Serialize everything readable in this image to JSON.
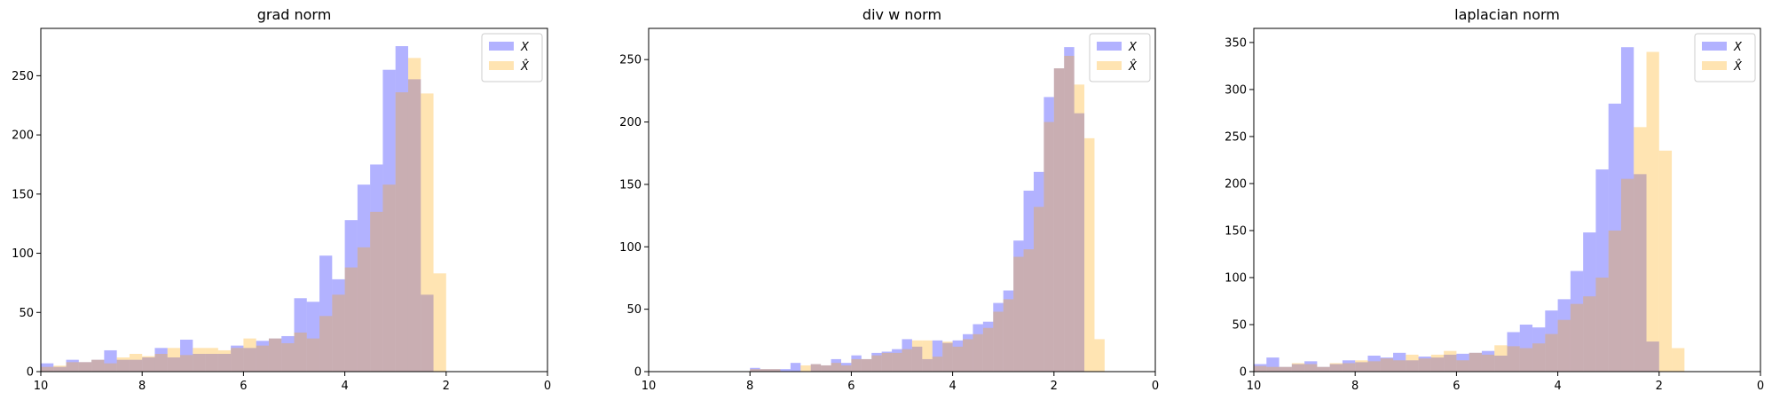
{
  "chart_data": [
    {
      "type": "histogram",
      "title": "grad norm",
      "xlim": [
        10,
        0
      ],
      "ylim": [
        0,
        290
      ],
      "xticks": [
        10,
        8,
        6,
        4,
        2,
        0
      ],
      "yticks": [
        0,
        50,
        100,
        150,
        200,
        250
      ],
      "legend_position": "top-right",
      "bin_width": 0.25,
      "series": [
        {
          "name": "X",
          "color": "#0000ff",
          "opacity": 0.3,
          "bin_start": 10.0,
          "values": [
            7,
            4,
            10,
            8,
            10,
            18,
            10,
            10,
            12,
            20,
            12,
            27,
            15,
            15,
            15,
            22,
            20,
            26,
            28,
            30,
            62,
            59,
            98,
            78,
            128,
            158,
            175,
            255,
            275,
            247,
            65
          ]
        },
        {
          "name": "X̂",
          "color": "#ffa500",
          "opacity": 0.3,
          "bin_start": 10.0,
          "values": [
            4,
            5,
            8,
            8,
            10,
            7,
            12,
            15,
            13,
            15,
            20,
            14,
            20,
            20,
            18,
            20,
            28,
            22,
            28,
            24,
            33,
            28,
            47,
            65,
            88,
            105,
            135,
            158,
            236,
            265,
            235,
            83
          ]
        }
      ]
    },
    {
      "type": "histogram",
      "title": "div w norm",
      "xlim": [
        10,
        0
      ],
      "ylim": [
        0,
        275
      ],
      "xticks": [
        10,
        8,
        6,
        4,
        2,
        0
      ],
      "yticks": [
        0,
        50,
        100,
        150,
        200,
        250
      ],
      "legend_position": "top-right",
      "bin_width": 0.2,
      "series": [
        {
          "name": "X",
          "color": "#0000ff",
          "opacity": 0.3,
          "bin_start": 8.0,
          "values": [
            3,
            2,
            2,
            2,
            7,
            0,
            6,
            5,
            10,
            7,
            13,
            10,
            15,
            16,
            18,
            26,
            20,
            10,
            25,
            23,
            25,
            30,
            38,
            40,
            55,
            65,
            105,
            145,
            160,
            220,
            243,
            260,
            207
          ]
        },
        {
          "name": "X̂",
          "color": "#ffa500",
          "opacity": 0.3,
          "bin_start": 8.0,
          "values": [
            2,
            2,
            2,
            0,
            0,
            5,
            6,
            5,
            7,
            5,
            10,
            10,
            13,
            15,
            15,
            18,
            25,
            25,
            12,
            24,
            20,
            26,
            30,
            35,
            48,
            58,
            92,
            98,
            132,
            200,
            243,
            253,
            230,
            187,
            26
          ]
        }
      ]
    },
    {
      "type": "histogram",
      "title": "laplacian norm",
      "xlim": [
        10,
        0
      ],
      "ylim": [
        0,
        365
      ],
      "xticks": [
        10,
        8,
        6,
        4,
        2,
        0
      ],
      "yticks": [
        0,
        50,
        100,
        150,
        200,
        250,
        300,
        350
      ],
      "legend_position": "top-right",
      "bin_width": 0.25,
      "series": [
        {
          "name": "X",
          "color": "#0000ff",
          "opacity": 0.3,
          "bin_start": 10.0,
          "values": [
            8,
            15,
            5,
            8,
            11,
            5,
            8,
            12,
            10,
            17,
            15,
            20,
            12,
            16,
            15,
            18,
            19,
            20,
            22,
            17,
            42,
            50,
            47,
            65,
            77,
            107,
            148,
            215,
            285,
            345,
            210,
            32
          ]
        },
        {
          "name": "X̂",
          "color": "#ffa500",
          "opacity": 0.3,
          "bin_start": 10.0,
          "values": [
            6,
            5,
            5,
            9,
            8,
            5,
            9,
            9,
            12,
            11,
            14,
            12,
            18,
            14,
            18,
            22,
            12,
            20,
            18,
            28,
            27,
            25,
            30,
            40,
            55,
            72,
            80,
            100,
            150,
            205,
            260,
            340,
            235,
            25
          ]
        }
      ]
    }
  ]
}
